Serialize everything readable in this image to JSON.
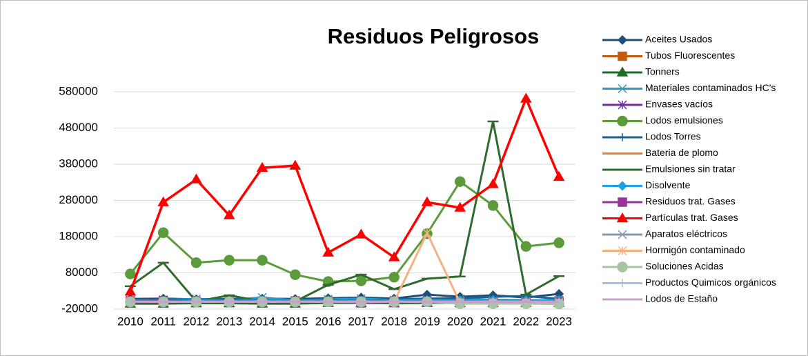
{
  "chart_data": {
    "type": "line",
    "title": "Residuos Peligrosos",
    "categories": [
      "2010",
      "2011",
      "2012",
      "2013",
      "2014",
      "2015",
      "2016",
      "2017",
      "2018",
      "2019",
      "2020",
      "2021",
      "2022",
      "2023"
    ],
    "ylim": [
      -20000,
      580000
    ],
    "yticks": [
      -20000,
      80000,
      180000,
      280000,
      380000,
      480000,
      580000
    ],
    "grid": true,
    "legend": "right",
    "series": [
      {
        "name": "Aceites Usados",
        "color": "#1f4e79",
        "marker": "diamond",
        "values": [
          8000,
          9000,
          7000,
          8000,
          9000,
          8000,
          10000,
          12000,
          9000,
          20000,
          14000,
          18000,
          12000,
          22000
        ]
      },
      {
        "name": "Tubos Fluorescentes",
        "color": "#c55a11",
        "marker": "square",
        "values": [
          1000,
          1000,
          1000,
          1000,
          1000,
          1000,
          1000,
          1000,
          1000,
          1000,
          1000,
          1000,
          1000,
          1000
        ]
      },
      {
        "name": "Tonners",
        "color": "#1e6b2a",
        "marker": "triangle",
        "values": [
          -5000,
          -5000,
          -4000,
          -4000,
          -5000,
          -5000,
          -3000,
          -3000,
          -4000,
          -3000,
          -3000,
          -3000,
          -3000,
          -3000
        ]
      },
      {
        "name": "Materiales contaminados HC's",
        "color": "#2e9ac4",
        "marker": "x",
        "values": [
          5000,
          6000,
          8000,
          6000,
          12000,
          4000,
          7000,
          9000,
          5000,
          6000,
          8000,
          6000,
          5000,
          4000
        ]
      },
      {
        "name": "Envases vacíos",
        "color": "#7030a0",
        "marker": "star",
        "values": [
          2000,
          3000,
          2000,
          2000,
          3000,
          2000,
          2000,
          3000,
          2000,
          3000,
          2000,
          2000,
          3000,
          4000
        ]
      },
      {
        "name": "Lodos emulsiones",
        "color": "#5b9b3a",
        "marker": "circle",
        "values": [
          77000,
          191000,
          108000,
          115000,
          115000,
          75000,
          56000,
          58000,
          68000,
          188000,
          332000,
          266000,
          153000,
          163000
        ]
      },
      {
        "name": "Lodos Torres",
        "color": "#1f5f8b",
        "marker": "plus",
        "values": [
          4000,
          5000,
          6000,
          8000,
          5000,
          3000,
          6000,
          4000,
          7000,
          9000,
          10000,
          14000,
          16000,
          8000
        ]
      },
      {
        "name": "Bateria de plomo",
        "color": "#ed7d31",
        "marker": "none",
        "values": [
          500,
          500,
          500,
          500,
          500,
          500,
          500,
          500,
          500,
          500,
          500,
          500,
          500,
          500
        ]
      },
      {
        "name": "Emulsiones sin tratar",
        "color": "#2f6b2f",
        "marker": "dash",
        "values": [
          43000,
          108000,
          1000,
          18000,
          1000,
          1000,
          47000,
          75000,
          35000,
          64000,
          70000,
          498000,
          20000,
          71000
        ]
      },
      {
        "name": "Disolvente",
        "color": "#1fa0e0",
        "marker": "diamond",
        "values": [
          3000,
          3000,
          4000,
          3000,
          4000,
          3000,
          4000,
          3000,
          4000,
          5000,
          4000,
          5000,
          4000,
          5000
        ]
      },
      {
        "name": "Residuos trat. Gases",
        "color": "#993399",
        "marker": "square",
        "values": [
          2000,
          3000,
          1000,
          0,
          0,
          2000,
          0,
          -3000,
          -2000,
          -1000,
          -3000,
          -3000,
          -2000,
          -1000
        ]
      },
      {
        "name": "Partículas trat. Gases",
        "color": "#ff0000",
        "marker": "triangle",
        "values": [
          28000,
          275000,
          338000,
          239000,
          370000,
          376000,
          136000,
          186000,
          123000,
          275000,
          260000,
          325000,
          561000,
          345000
        ]
      },
      {
        "name": "Aparatos eléctricos",
        "color": "#8496b0",
        "marker": "x",
        "values": [
          1000,
          1000,
          1000,
          1000,
          1000,
          1000,
          1000,
          1000,
          1000,
          1000,
          1000,
          1000,
          1000,
          1000
        ]
      },
      {
        "name": "Hormigón contaminado",
        "color": "#f4b183",
        "marker": "star",
        "values": [
          0,
          0,
          0,
          0,
          0,
          0,
          0,
          0,
          0,
          190000,
          -3000,
          -4000,
          -4000,
          -3000
        ]
      },
      {
        "name": "Soluciones Acidas",
        "color": "#a9c4a0",
        "marker": "circle",
        "values": [
          0,
          0,
          0,
          0,
          0,
          0,
          0,
          0,
          0,
          0,
          -5000,
          -5000,
          -5000,
          -6000
        ]
      },
      {
        "name": "Productos Quimicos orgánicos",
        "color": "#9dc3e6",
        "marker": "plus",
        "values": [
          0,
          0,
          0,
          0,
          0,
          0,
          0,
          0,
          0,
          0,
          0,
          0,
          0,
          0
        ]
      },
      {
        "name": "Lodos de Estaño",
        "color": "#c9a0c9",
        "marker": "none",
        "values": [
          0,
          0,
          0,
          0,
          0,
          0,
          0,
          0,
          0,
          0,
          0,
          0,
          0,
          0
        ]
      }
    ]
  }
}
